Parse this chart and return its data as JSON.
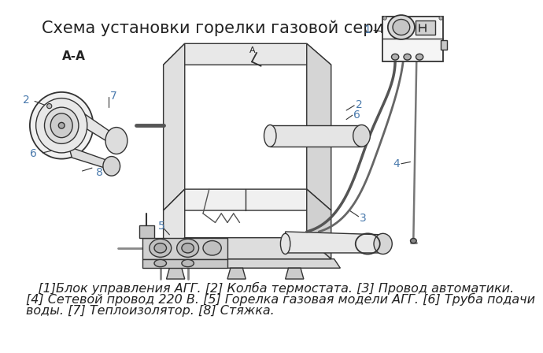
{
  "title": "Схема установки горелки газовой серии АГГ",
  "title_fontsize": 15,
  "background_color": "#ffffff",
  "text_color": "#222222",
  "legend_line1": "   [1]Блок управления АГГ. [2] Колба термостата. [3] Провод автоматики.",
  "legend_line2": "[4] Сетевой провод 220 В. [5] Горелка газовая модели АГГ. [6] Труба подачи",
  "legend_line3": "воды. [7] Теплоизолятор. [8] Стяжка.",
  "legend_fontsize": 11.5,
  "section_label": "А-А",
  "label_fontsize": 10,
  "line_color": "#333333",
  "line_width": 1.0,
  "lc_blue": "#4a7aad"
}
